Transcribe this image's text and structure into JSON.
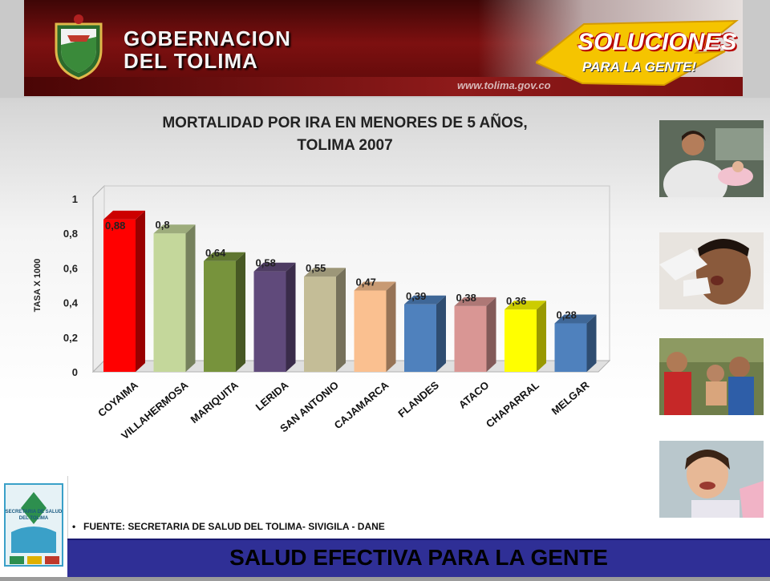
{
  "header": {
    "title_line1": "GOBERNACION",
    "title_line2": "DEL TOLIMA",
    "website": "www.tolima.gov.co",
    "slogan_line1": "SOLUCIONES",
    "slogan_line2": "PARA LA GENTE!"
  },
  "colors": {
    "banner": "#7d1010",
    "footer": "#2f2f96",
    "slogan_accent": "#f5c400"
  },
  "chart_data": {
    "type": "bar",
    "title_line1": "MORTALIDAD POR IRA EN MENORES DE 5 AÑOS,",
    "title_line2": "TOLIMA 2007",
    "ylabel": "TASA X 1000",
    "xlabel": "",
    "ylim": [
      0,
      1
    ],
    "yticks": [
      "0",
      "0,2",
      "0,4",
      "0,6",
      "0,8",
      "1"
    ],
    "ytick_values": [
      0,
      0.2,
      0.4,
      0.6,
      0.8,
      1
    ],
    "categories": [
      "COYAIMA",
      "VILLAHERMOSA",
      "MARIQUITA",
      "LERIDA",
      "SAN ANTONIO",
      "CAJAMARCA",
      "FLANDES",
      "ATACO",
      "CHAPARRAL",
      "MELGAR"
    ],
    "values": [
      0.88,
      0.8,
      0.64,
      0.58,
      0.55,
      0.47,
      0.39,
      0.38,
      0.36,
      0.28
    ],
    "value_labels": [
      "0,88",
      "0,8",
      "0,64",
      "0,58",
      "0,55",
      "0,47",
      "0,39",
      "0,38",
      "0,36",
      "0,28"
    ],
    "bar_colors": [
      "#ff0000",
      "#c4d79b",
      "#77933c",
      "#604a7b",
      "#c4bd97",
      "#fac090",
      "#4f81bd",
      "#d99694",
      "#ffff00",
      "#4f81bd"
    ],
    "grid": false,
    "legend": "none",
    "style": "3d"
  },
  "photos": [
    {
      "icon": "mother-child-photo"
    },
    {
      "icon": "child-vaccination-photo"
    },
    {
      "icon": "children-group-photo"
    },
    {
      "icon": "smiling-child-photo"
    }
  ],
  "source": "FUENTE: SECRETARIA DE SALUD DEL TOLIMA- SIVIGILA - DANE",
  "footer": {
    "text": "SALUD EFECTIVA PARA LA GENTE"
  },
  "logo": {
    "line1": "SECRETARIA DE SALUD",
    "line2": "DEL TOLIMA"
  }
}
